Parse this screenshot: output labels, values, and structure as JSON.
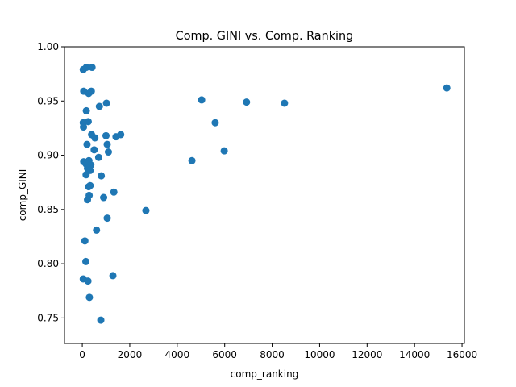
{
  "chart_data": {
    "type": "scatter",
    "title": "Comp. GINI vs. Comp. Ranking",
    "xlabel": "comp_ranking",
    "ylabel": "comp_GINI",
    "xlim": [
      -750,
      16100
    ],
    "ylim": [
      0.7265,
      1.0
    ],
    "xticks": [
      0,
      2000,
      4000,
      6000,
      8000,
      10000,
      12000,
      14000,
      16000
    ],
    "yticks": [
      0.75,
      0.8,
      0.85,
      0.9,
      0.95,
      1.0
    ],
    "xtick_labels": [
      "0",
      "2000",
      "4000",
      "6000",
      "8000",
      "10000",
      "12000",
      "14000",
      "16000"
    ],
    "ytick_labels": [
      "0.75",
      "0.80",
      "0.85",
      "0.90",
      "0.95",
      "1.00"
    ],
    "grid": false,
    "marker_color": "#1f77b4",
    "points": [
      {
        "x": 40,
        "y": 0.979
      },
      {
        "x": 170,
        "y": 0.981
      },
      {
        "x": 410,
        "y": 0.981
      },
      {
        "x": 60,
        "y": 0.959
      },
      {
        "x": 270,
        "y": 0.957
      },
      {
        "x": 380,
        "y": 0.959
      },
      {
        "x": 720,
        "y": 0.945
      },
      {
        "x": 1020,
        "y": 0.948
      },
      {
        "x": 170,
        "y": 0.941
      },
      {
        "x": 250,
        "y": 0.931
      },
      {
        "x": 40,
        "y": 0.93
      },
      {
        "x": 50,
        "y": 0.926
      },
      {
        "x": 390,
        "y": 0.919
      },
      {
        "x": 530,
        "y": 0.916
      },
      {
        "x": 1000,
        "y": 0.918
      },
      {
        "x": 1420,
        "y": 0.917
      },
      {
        "x": 1620,
        "y": 0.919
      },
      {
        "x": 200,
        "y": 0.91
      },
      {
        "x": 500,
        "y": 0.905
      },
      {
        "x": 1050,
        "y": 0.91
      },
      {
        "x": 1100,
        "y": 0.903
      },
      {
        "x": 690,
        "y": 0.898
      },
      {
        "x": 60,
        "y": 0.894
      },
      {
        "x": 160,
        "y": 0.892
      },
      {
        "x": 280,
        "y": 0.895
      },
      {
        "x": 360,
        "y": 0.891
      },
      {
        "x": 220,
        "y": 0.888
      },
      {
        "x": 330,
        "y": 0.886
      },
      {
        "x": 160,
        "y": 0.882
      },
      {
        "x": 800,
        "y": 0.881
      },
      {
        "x": 270,
        "y": 0.871
      },
      {
        "x": 330,
        "y": 0.872
      },
      {
        "x": 1330,
        "y": 0.866
      },
      {
        "x": 290,
        "y": 0.863
      },
      {
        "x": 220,
        "y": 0.859
      },
      {
        "x": 900,
        "y": 0.861
      },
      {
        "x": 2680,
        "y": 0.849
      },
      {
        "x": 1050,
        "y": 0.842
      },
      {
        "x": 600,
        "y": 0.831
      },
      {
        "x": 110,
        "y": 0.821
      },
      {
        "x": 150,
        "y": 0.802
      },
      {
        "x": 1290,
        "y": 0.789
      },
      {
        "x": 40,
        "y": 0.786
      },
      {
        "x": 240,
        "y": 0.784
      },
      {
        "x": 300,
        "y": 0.769
      },
      {
        "x": 780,
        "y": 0.748
      },
      {
        "x": 4620,
        "y": 0.895
      },
      {
        "x": 5030,
        "y": 0.951
      },
      {
        "x": 5600,
        "y": 0.93
      },
      {
        "x": 5980,
        "y": 0.904
      },
      {
        "x": 6920,
        "y": 0.949
      },
      {
        "x": 8520,
        "y": 0.948
      },
      {
        "x": 15360,
        "y": 0.962
      }
    ]
  }
}
